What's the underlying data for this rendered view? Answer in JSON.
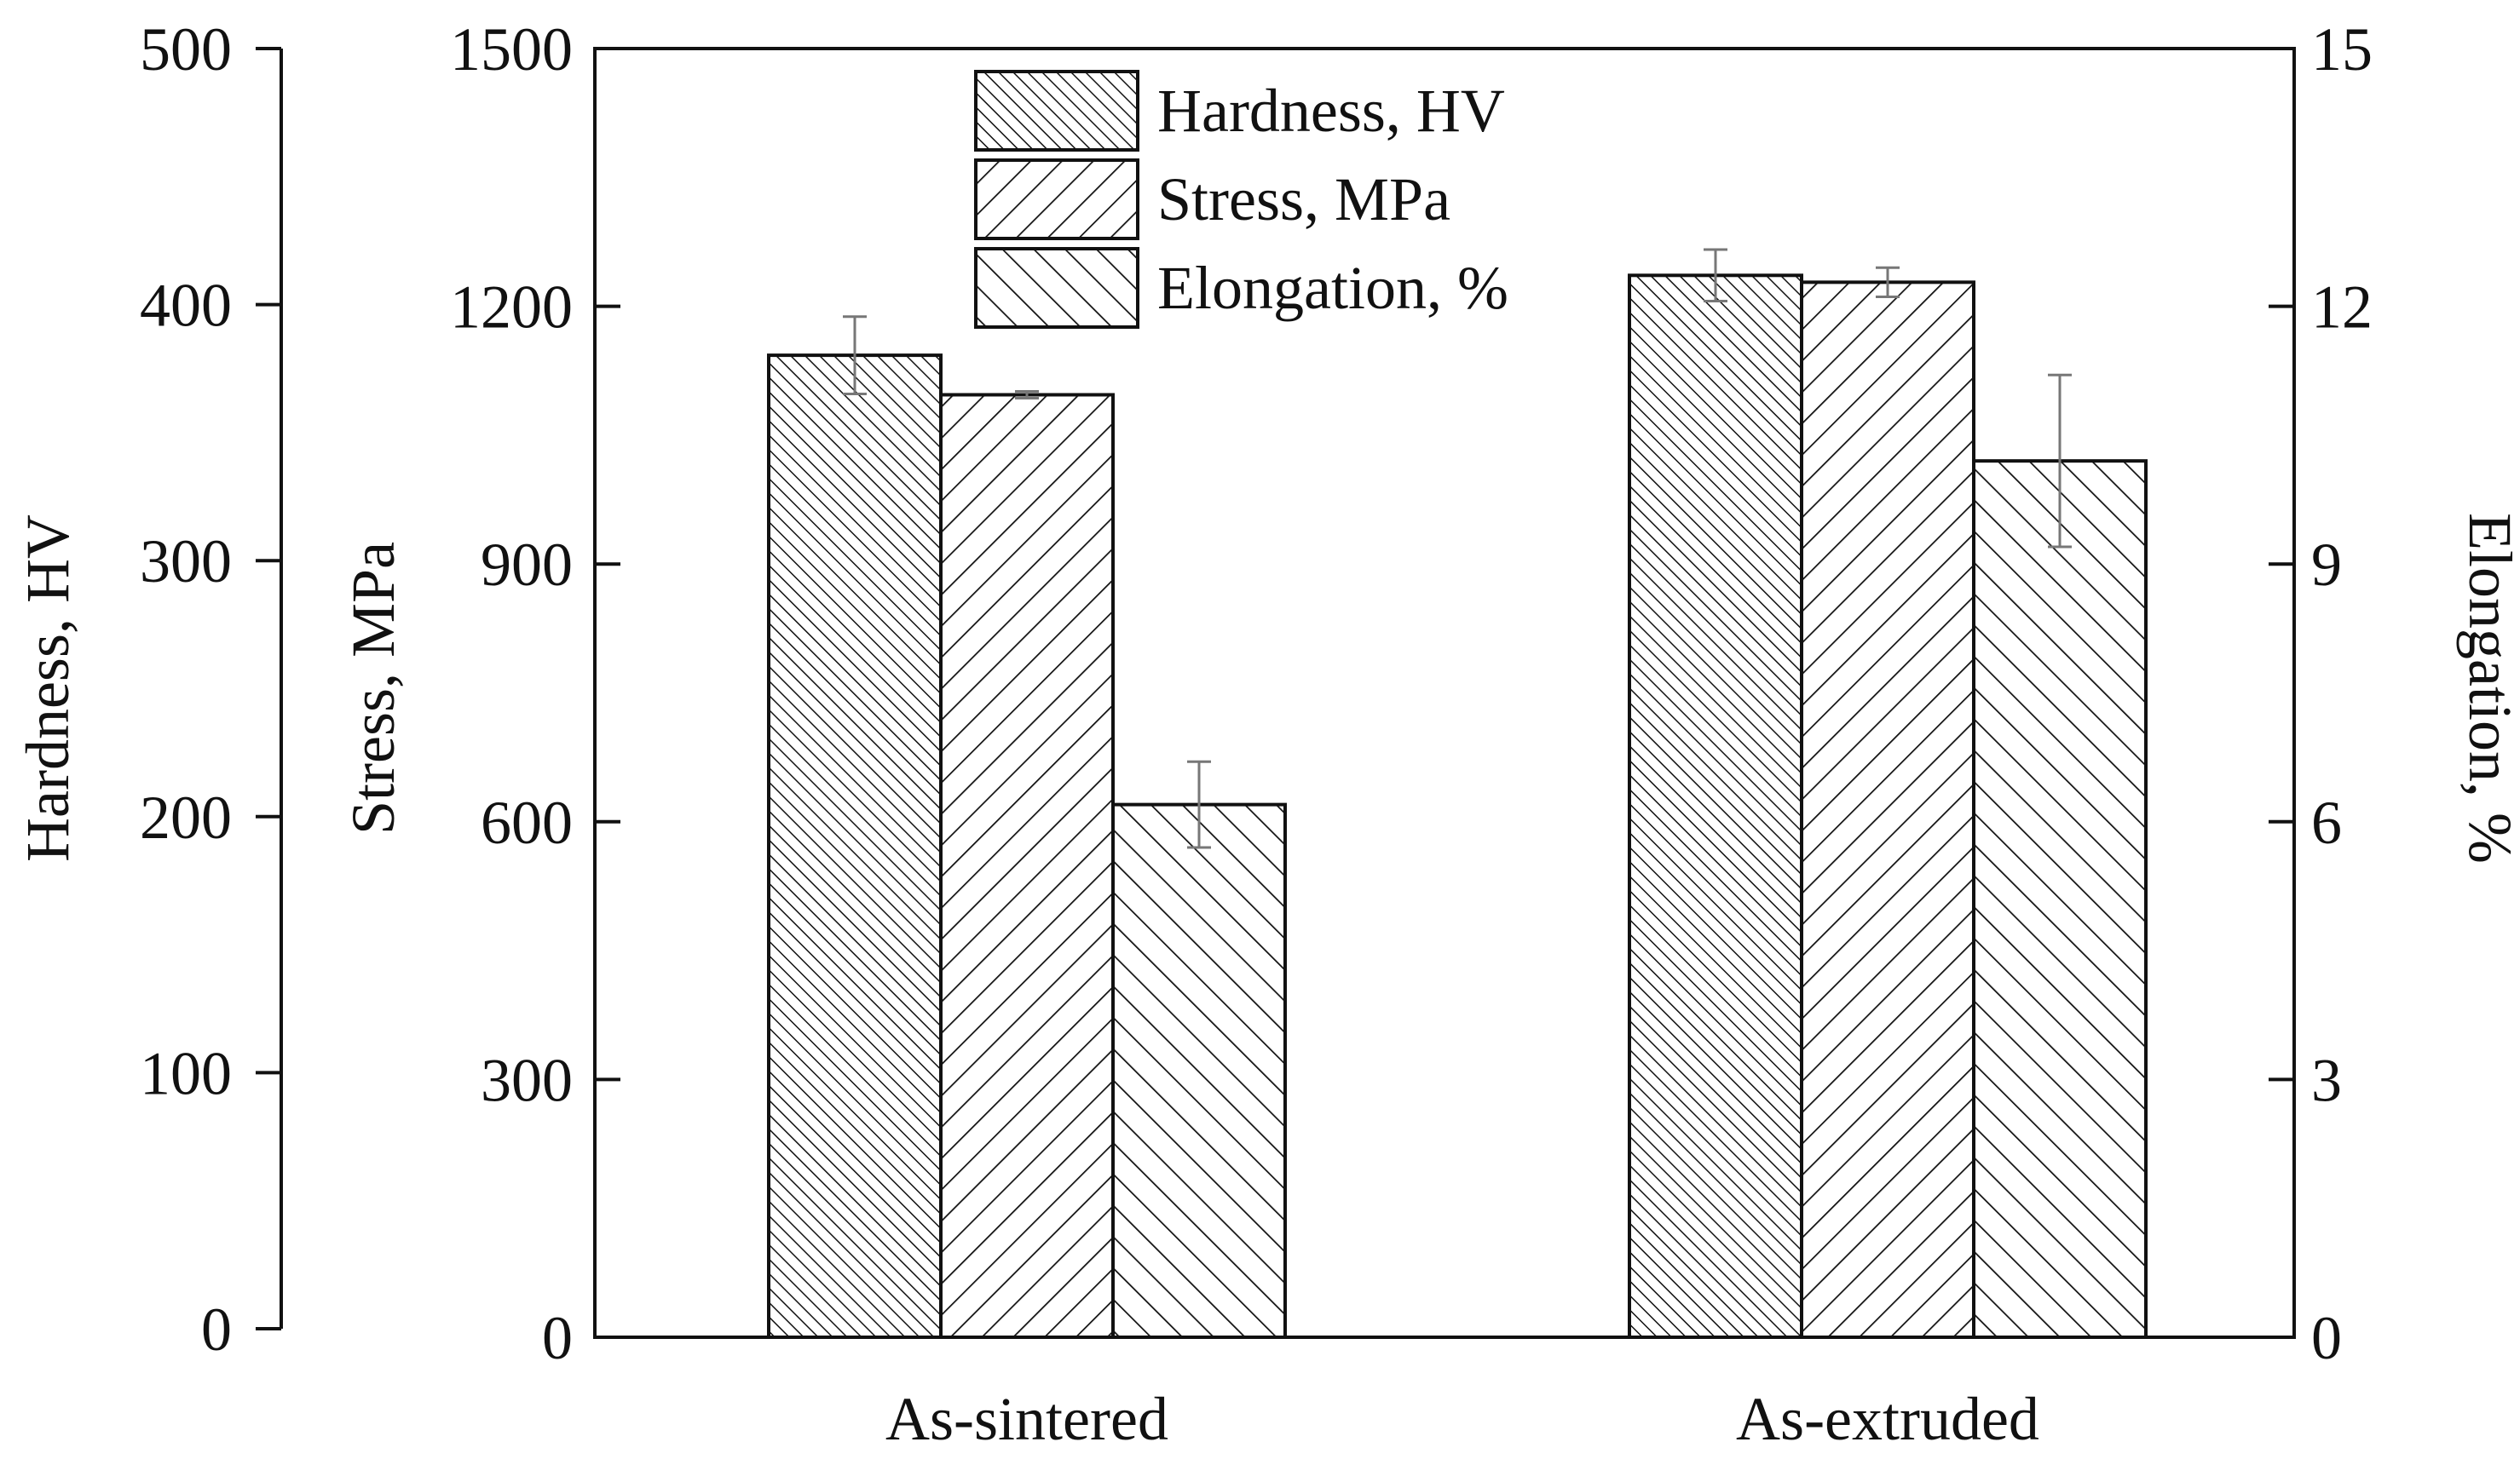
{
  "chart_data": {
    "type": "bar",
    "categories": [
      "As-sintered",
      "As-extruded"
    ],
    "series": [
      {
        "name": "Hardness, HV",
        "axis": "hardness",
        "pattern": "dense-diagonal",
        "values": [
          381,
          412
        ],
        "errors": [
          15,
          10
        ]
      },
      {
        "name": "Stress, MPa",
        "axis": "stress",
        "pattern": "forward-diagonal",
        "values": [
          1097,
          1228
        ],
        "errors": [
          4,
          17
        ]
      },
      {
        "name": "Elongation, %",
        "axis": "elongation",
        "pattern": "backward-diagonal",
        "values": [
          6.2,
          10.2
        ],
        "errors": [
          0.5,
          1.0
        ]
      }
    ],
    "axes": {
      "hardness": {
        "label": "Hardness, HV",
        "range": [
          0,
          500
        ],
        "ticks": [
          "0",
          "100",
          "200",
          "300",
          "400",
          "500"
        ]
      },
      "stress": {
        "label": "Stress, MPa",
        "range": [
          0,
          1500
        ],
        "ticks": [
          "0",
          "300",
          "600",
          "900",
          "1200",
          "1500"
        ]
      },
      "elongation": {
        "label": "Elongation, %",
        "range": [
          0,
          15
        ],
        "ticks": [
          "0",
          "3",
          "6",
          "9",
          "12",
          "15"
        ]
      }
    },
    "legend": {
      "position": "top-center",
      "entries": [
        "Hardness, HV",
        "Stress, MPa",
        "Elongation, %"
      ]
    },
    "colors": {
      "line": "#111111",
      "background": "#ffffff",
      "error": "#777777"
    }
  }
}
